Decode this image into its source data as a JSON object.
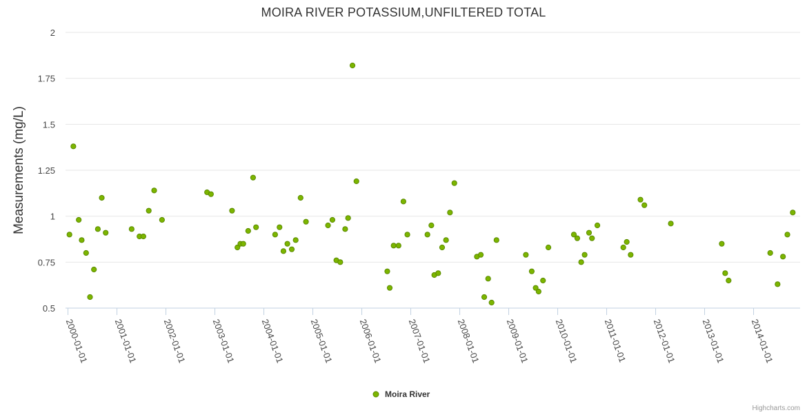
{
  "chart_data": {
    "type": "scatter",
    "title": "MOIRA RIVER POTASSIUM,UNFILTERED TOTAL",
    "xlabel": "",
    "ylabel": "Measurements (mg/L)",
    "ylim": [
      0.5,
      2
    ],
    "yticks": [
      0.5,
      0.75,
      1,
      1.25,
      1.5,
      1.75,
      2
    ],
    "ytick_labels": [
      "0.5",
      "0.75",
      "1",
      "1.25",
      "1.5",
      "1.75",
      "2"
    ],
    "xlim": [
      1999.95,
      2014.95
    ],
    "xticks": [
      2000,
      2001,
      2002,
      2003,
      2004,
      2005,
      2006,
      2007,
      2008,
      2009,
      2010,
      2011,
      2012,
      2013,
      2014
    ],
    "xtick_labels": [
      "2000-01-01",
      "2001-01-01",
      "2002-01-01",
      "2003-01-01",
      "2004-01-01",
      "2005-01-01",
      "2006-01-01",
      "2007-01-01",
      "2008-01-01",
      "2009-01-01",
      "2010-01-01",
      "2011-01-01",
      "2012-01-01",
      "2013-01-01",
      "2014-01-01"
    ],
    "grid": true,
    "legend_position": "bottom-center",
    "color": "#7cb500",
    "series": [
      {
        "name": "Moira River",
        "points": [
          [
            2000.03,
            0.9
          ],
          [
            2000.11,
            1.38
          ],
          [
            2000.22,
            0.98
          ],
          [
            2000.28,
            0.87
          ],
          [
            2000.37,
            0.8
          ],
          [
            2000.45,
            0.56
          ],
          [
            2000.53,
            0.71
          ],
          [
            2000.61,
            0.93
          ],
          [
            2000.69,
            1.1
          ],
          [
            2000.77,
            0.91
          ],
          [
            2001.3,
            0.93
          ],
          [
            2001.46,
            0.89
          ],
          [
            2001.54,
            0.89
          ],
          [
            2001.65,
            1.03
          ],
          [
            2001.76,
            1.14
          ],
          [
            2001.92,
            0.98
          ],
          [
            2002.84,
            1.13
          ],
          [
            2002.92,
            1.12
          ],
          [
            2003.35,
            1.03
          ],
          [
            2003.46,
            0.83
          ],
          [
            2003.52,
            0.85
          ],
          [
            2003.58,
            0.85
          ],
          [
            2003.68,
            0.92
          ],
          [
            2003.78,
            1.21
          ],
          [
            2003.84,
            0.94
          ],
          [
            2004.23,
            0.9
          ],
          [
            2004.32,
            0.94
          ],
          [
            2004.4,
            0.81
          ],
          [
            2004.48,
            0.85
          ],
          [
            2004.57,
            0.82
          ],
          [
            2004.65,
            0.87
          ],
          [
            2004.75,
            1.1
          ],
          [
            2004.86,
            0.97
          ],
          [
            2005.31,
            0.95
          ],
          [
            2005.4,
            0.98
          ],
          [
            2005.48,
            0.76
          ],
          [
            2005.56,
            0.75
          ],
          [
            2005.66,
            0.93
          ],
          [
            2005.72,
            0.99
          ],
          [
            2005.81,
            1.82
          ],
          [
            2005.89,
            1.19
          ],
          [
            2006.52,
            0.7
          ],
          [
            2006.57,
            0.61
          ],
          [
            2006.65,
            0.84
          ],
          [
            2006.75,
            0.84
          ],
          [
            2006.85,
            1.08
          ],
          [
            2006.93,
            0.9
          ],
          [
            2007.34,
            0.9
          ],
          [
            2007.42,
            0.95
          ],
          [
            2007.48,
            0.68
          ],
          [
            2007.56,
            0.69
          ],
          [
            2007.64,
            0.83
          ],
          [
            2007.72,
            0.87
          ],
          [
            2007.8,
            1.02
          ],
          [
            2007.89,
            1.18
          ],
          [
            2008.35,
            0.78
          ],
          [
            2008.43,
            0.79
          ],
          [
            2008.5,
            0.56
          ],
          [
            2008.58,
            0.66
          ],
          [
            2008.65,
            0.53
          ],
          [
            2008.75,
            0.87
          ],
          [
            2009.35,
            0.79
          ],
          [
            2009.47,
            0.7
          ],
          [
            2009.55,
            0.61
          ],
          [
            2009.61,
            0.59
          ],
          [
            2009.7,
            0.65
          ],
          [
            2009.81,
            0.83
          ],
          [
            2010.33,
            0.9
          ],
          [
            2010.4,
            0.88
          ],
          [
            2010.48,
            0.75
          ],
          [
            2010.55,
            0.79
          ],
          [
            2010.64,
            0.91
          ],
          [
            2010.7,
            0.88
          ],
          [
            2010.81,
            0.95
          ],
          [
            2011.34,
            0.83
          ],
          [
            2011.41,
            0.86
          ],
          [
            2011.49,
            0.79
          ],
          [
            2011.69,
            1.09
          ],
          [
            2011.77,
            1.06
          ],
          [
            2012.31,
            0.96
          ],
          [
            2013.35,
            0.85
          ],
          [
            2013.42,
            0.69
          ],
          [
            2013.49,
            0.65
          ],
          [
            2014.34,
            0.8
          ],
          [
            2014.49,
            0.63
          ],
          [
            2014.6,
            0.78
          ],
          [
            2014.69,
            0.9
          ],
          [
            2014.8,
            1.02
          ]
        ]
      }
    ]
  },
  "legend": {
    "label": "Moira River"
  },
  "credits": "Highcharts.com"
}
